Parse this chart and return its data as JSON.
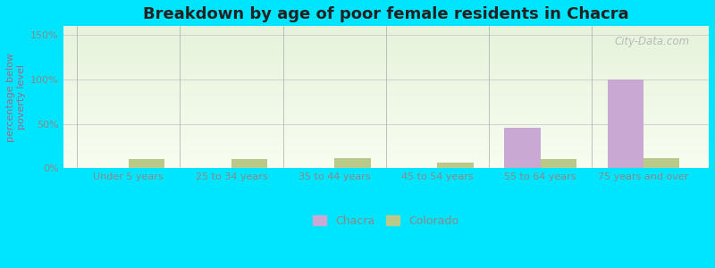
{
  "title": "Breakdown by age of poor female residents in Chacra",
  "ylabel": "percentage below\npoverty level",
  "categories": [
    "Under 5 years",
    "25 to 34 years",
    "35 to 44 years",
    "45 to 54 years",
    "55 to 64 years",
    "75 years and over"
  ],
  "chacra_values": [
    0,
    0,
    0,
    0,
    46,
    100
  ],
  "colorado_values": [
    10,
    10,
    11,
    6,
    10,
    11
  ],
  "chacra_color": "#c9a8d4",
  "colorado_color": "#b8c98a",
  "bar_width": 0.35,
  "ylim": [
    0,
    160
  ],
  "yticks": [
    0,
    50,
    100,
    150
  ],
  "ytick_labels": [
    "0%",
    "50%",
    "100%",
    "150%"
  ],
  "outer_bg": "#00e5ff",
  "title_fontsize": 13,
  "axis_label_fontsize": 8,
  "tick_fontsize": 8,
  "legend_labels": [
    "Chacra",
    "Colorado"
  ],
  "watermark": "City-Data.com",
  "ylabel_color": "#9b6b8a",
  "tick_color": "#888888",
  "grid_color": "#cccccc",
  "separator_color": "#aaaaaa"
}
